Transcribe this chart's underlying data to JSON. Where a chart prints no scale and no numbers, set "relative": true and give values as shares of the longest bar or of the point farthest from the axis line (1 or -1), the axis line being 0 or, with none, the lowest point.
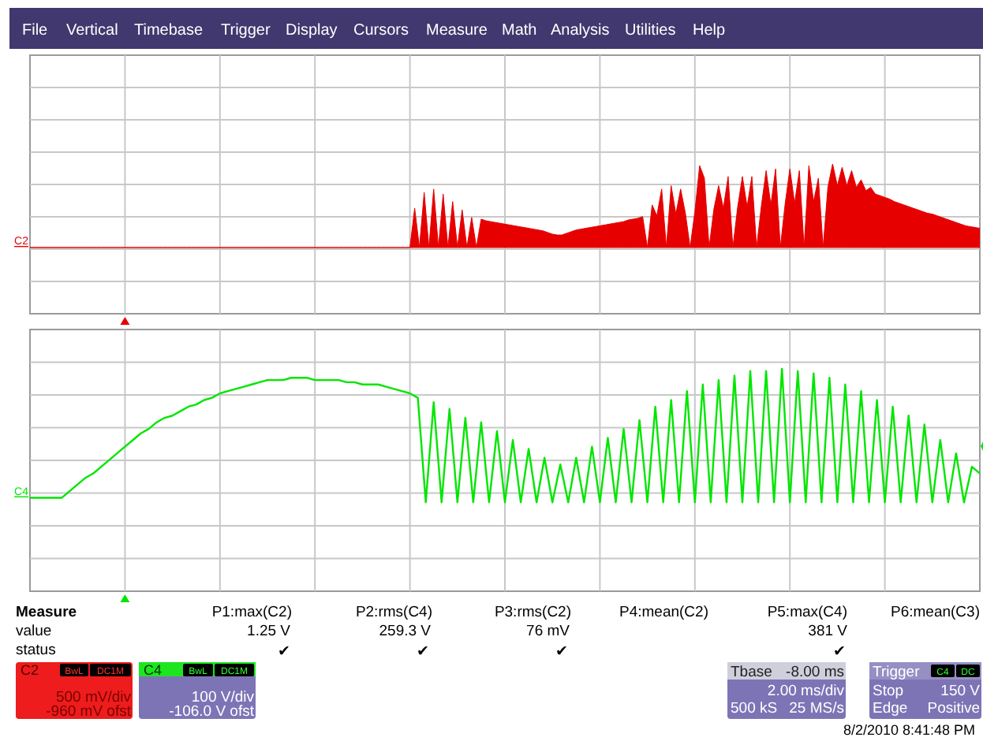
{
  "chart_data": [
    {
      "type": "other",
      "annotations": [
        "File",
        "Vertical",
        "Timebase",
        "Trigger",
        "Display",
        "Cursors",
        "Measure",
        "Math",
        "Analysis",
        "Utilities",
        "Help"
      ]
    },
    {
      "type": "area",
      "relative": true,
      "grid": true,
      "categories": [
        null,
        null,
        null,
        null,
        null,
        null,
        null,
        null,
        null,
        null,
        null,
        null,
        null,
        null,
        null,
        null,
        null,
        null,
        null,
        null,
        null,
        null,
        null,
        null,
        null,
        null,
        null,
        null,
        null,
        null,
        null,
        null,
        null,
        null,
        null,
        null,
        null,
        null,
        null,
        null,
        null,
        null,
        null,
        null,
        null,
        null,
        null,
        null,
        null,
        null,
        null,
        null,
        null,
        null,
        null,
        null,
        null,
        null,
        null,
        null,
        null,
        null,
        null,
        null,
        null,
        null,
        null,
        null,
        null,
        null,
        null,
        null,
        null,
        null,
        null,
        null,
        null,
        null,
        null,
        null,
        null,
        null,
        null,
        null,
        null,
        null,
        null,
        null,
        null,
        null,
        null,
        null,
        null,
        null,
        null,
        null,
        null,
        null,
        null,
        null,
        null,
        null,
        null,
        null,
        null,
        null,
        null,
        null,
        null,
        null,
        null,
        null,
        null,
        null,
        null,
        null,
        null,
        null,
        null,
        null,
        null,
        null,
        null,
        null,
        null,
        null,
        null,
        null,
        null,
        null,
        null,
        null,
        null,
        null,
        null,
        null,
        null,
        null,
        null,
        null,
        null,
        null,
        null,
        null,
        null,
        null,
        null,
        null,
        null,
        null,
        null,
        null,
        null,
        null,
        null,
        null,
        null,
        null,
        null,
        null,
        null,
        null,
        null,
        null,
        null,
        null,
        null,
        null,
        null,
        null,
        null,
        null,
        null,
        null,
        null,
        null,
        null,
        null,
        null,
        null,
        null,
        null,
        null,
        null,
        null,
        null,
        null,
        null,
        null,
        null,
        null,
        null,
        null,
        null,
        null,
        null,
        null,
        null,
        null,
        null,
        null
      ],
      "series": [
        {
          "name": "C2",
          "color": "#e60000",
          "values": [
            0,
            0,
            0,
            0,
            0,
            0,
            0,
            0,
            0,
            0,
            0,
            0,
            0,
            0,
            0,
            0,
            0,
            0,
            0,
            0,
            0,
            0,
            0,
            0,
            0,
            0,
            0,
            0,
            0,
            0,
            0,
            0,
            0,
            0,
            0,
            0,
            0,
            0,
            0,
            0,
            0,
            0,
            0,
            0,
            0,
            0,
            0,
            0,
            0,
            0,
            0,
            0,
            0,
            0,
            0,
            0,
            0,
            0,
            0,
            0,
            0,
            0,
            0,
            0,
            0,
            0,
            0,
            0,
            0,
            0,
            0,
            0,
            0,
            0,
            0,
            0,
            0,
            0,
            0,
            0,
            0,
            0.47,
            0,
            0.66,
            0,
            0.7,
            0,
            0.64,
            0,
            0.55,
            0,
            0.45,
            0,
            0.36,
            0,
            0.34,
            0.32,
            0.31,
            0.3,
            0.29,
            0.28,
            0.27,
            0.26,
            0.25,
            0.24,
            0.23,
            0.22,
            0.21,
            0.2,
            0.18,
            0.16,
            0.15,
            0.15,
            0.17,
            0.19,
            0.21,
            0.22,
            0.23,
            0.24,
            0.25,
            0.26,
            0.27,
            0.28,
            0.29,
            0.3,
            0.31,
            0.33,
            0.34,
            0.35,
            0.37,
            0,
            0.51,
            0.38,
            0.7,
            0,
            0.74,
            0.4,
            0.7,
            0.41,
            0,
            0.43,
            0.98,
            0.83,
            0,
            0.46,
            0.74,
            0.47,
            0.85,
            0,
            0.48,
            0.85,
            0.49,
            0.85,
            0,
            0.5,
            0.92,
            0.51,
            0.94,
            0,
            0.52,
            0.94,
            0.53,
            0.92,
            0,
            0.98,
            0.55,
            0.83,
            0,
            0.72,
            1,
            0.74,
            0.96,
            0.74,
            0.92,
            0.72,
            0.81,
            0.68,
            0.72,
            0.64,
            0.62,
            0.6,
            0.58,
            0.55,
            0.53,
            0.51,
            0.49,
            0.47,
            0.45,
            0.43,
            0.41,
            0.4,
            0.38,
            0.36,
            0.34,
            0.32,
            0.3,
            0.28,
            0.26,
            0.25,
            0.24,
            0.23
          ]
        }
      ]
    },
    {
      "type": "line",
      "relative": true,
      "grid": true,
      "categories": [
        null,
        null,
        null,
        null,
        null,
        null,
        null,
        null,
        null,
        null,
        null,
        null,
        null,
        null,
        null,
        null,
        null,
        null,
        null,
        null,
        null,
        null,
        null,
        null,
        null,
        null,
        null,
        null,
        null,
        null,
        null,
        null,
        null,
        null,
        null,
        null,
        null,
        null,
        null,
        null,
        null,
        null,
        null,
        null,
        null,
        null,
        null,
        null,
        null,
        null,
        null,
        null,
        null,
        null,
        null,
        null,
        null,
        null,
        null,
        null,
        null,
        null,
        null,
        null,
        null,
        null,
        null,
        null,
        null,
        null,
        null,
        null,
        null,
        null,
        null,
        null,
        null,
        null,
        null,
        null,
        null,
        null,
        null,
        null,
        null,
        null,
        null,
        null,
        null,
        null,
        null,
        null,
        null,
        null,
        null,
        null,
        null,
        null,
        null,
        null,
        null,
        null,
        null,
        null,
        null,
        null,
        null,
        null,
        null,
        null,
        null,
        null,
        null,
        null,
        null,
        null,
        null,
        null,
        null,
        null,
        null
      ],
      "series": [
        {
          "name": "C4",
          "color": "#00e600",
          "values": [
            0.42,
            0.42,
            0.42,
            0.42,
            0.42,
            0.45,
            0.48,
            0.51,
            0.53,
            0.56,
            0.59,
            0.62,
            0.65,
            0.68,
            0.71,
            0.73,
            0.76,
            0.78,
            0.79,
            0.81,
            0.83,
            0.84,
            0.86,
            0.87,
            0.89,
            0.9,
            0.91,
            0.92,
            0.93,
            0.94,
            0.95,
            0.95,
            0.95,
            0.96,
            0.96,
            0.96,
            0.95,
            0.95,
            0.95,
            0.95,
            0.94,
            0.94,
            0.93,
            0.93,
            0.93,
            0.92,
            0.91,
            0.9,
            0.89,
            0.87,
            0.4,
            0.85,
            0.4,
            0.82,
            0.4,
            0.78,
            0.4,
            0.76,
            0.4,
            0.72,
            0.4,
            0.68,
            0.4,
            0.64,
            0.4,
            0.6,
            0.4,
            0.57,
            0.4,
            0.6,
            0.4,
            0.65,
            0.4,
            0.69,
            0.4,
            0.73,
            0.4,
            0.77,
            0.4,
            0.83,
            0.4,
            0.86,
            0.4,
            0.9,
            0.4,
            0.93,
            0.4,
            0.95,
            0.4,
            0.97,
            0.4,
            0.99,
            0.4,
            0.99,
            0.4,
            1,
            0.4,
            0.99,
            0.4,
            0.98,
            0.4,
            0.96,
            0.4,
            0.93,
            0.4,
            0.9,
            0.4,
            0.86,
            0.4,
            0.83,
            0.4,
            0.79,
            0.4,
            0.75,
            0.4,
            0.68,
            0.4,
            0.62,
            0.4,
            0.56,
            0.53
          ]
        }
      ]
    },
    {
      "type": "other",
      "annotations": [
        "Measure",
        "P1:max(C2)",
        "P2:rms(C4)",
        "P3:rms(C2)",
        "P4:mean(C2)",
        "P5:max(C4)",
        "P6:mean(C3)",
        "value",
        "1.25 V",
        "259.3 V",
        "76 mV",
        "381 V",
        "status",
        "✔",
        "✔",
        "✔",
        "✔",
        "C2",
        "BwL",
        "DC1M",
        "500 mV/div",
        "-960 mV ofst",
        "C4",
        "BwL",
        "DC1M",
        "100 V/div",
        "-106.0 V ofst",
        "Tbase",
        "-8.00 ms",
        "2.00 ms/div",
        "500 kS",
        "25 MS/s",
        "Trigger",
        "C4",
        "DC",
        "Stop",
        "150 V",
        "Edge",
        "Positive",
        "8/2/2010 8:41:48 PM"
      ]
    }
  ]
}
